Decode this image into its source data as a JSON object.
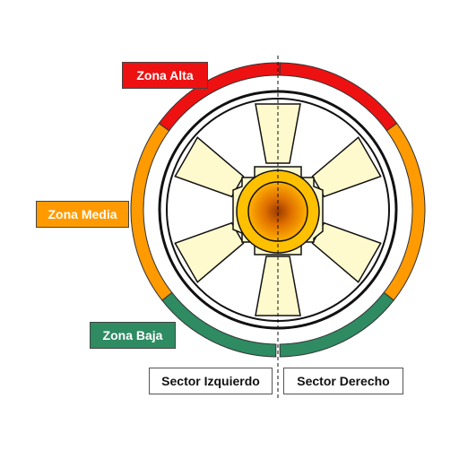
{
  "zones": {
    "high": {
      "label": "Zona Alta",
      "color": "#ee1111"
    },
    "medium": {
      "label": "Zona Media",
      "color": "#ff9a00"
    },
    "low": {
      "label": "Zona Baja",
      "color": "#2e8b62"
    }
  },
  "sectors": {
    "left": "Sector Izquierdo",
    "right": "Sector Derecho"
  },
  "colors": {
    "blade_fill": "#fffacd",
    "hub_ring": "#ffc000",
    "hub_center": "#e07000",
    "outline": "#111111"
  }
}
